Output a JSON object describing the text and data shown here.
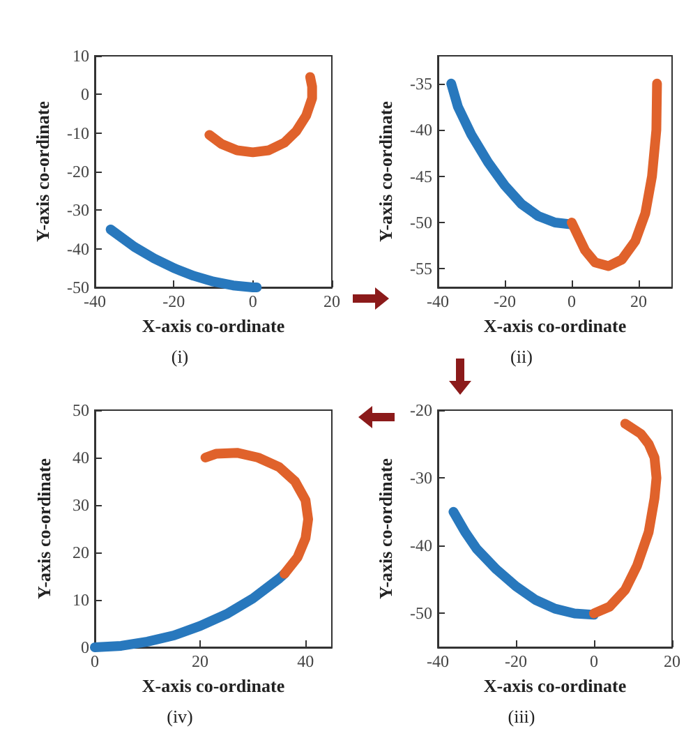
{
  "chart_data": [
    {
      "type": "line",
      "xlabel": "X-axis co-ordinate",
      "ylabel": "Y-axis co-ordinate",
      "annotations": [
        "(i)"
      ],
      "xlim": [
        -40,
        20
      ],
      "ylim": [
        -50,
        10
      ],
      "xticks": [
        -40,
        -20,
        0,
        20
      ],
      "yticks": [
        -50,
        -40,
        -30,
        -20,
        -10,
        0,
        10
      ],
      "marker": "none",
      "series": [
        {
          "color": "#2878bd",
          "x": [
            -36,
            -30,
            -25,
            -20,
            -15,
            -10,
            -5,
            0,
            1
          ],
          "values": [
            -35,
            -39.5,
            -42.5,
            -45,
            -47,
            -48.5,
            -49.5,
            -50,
            -50
          ]
        },
        {
          "color": "#e0622b",
          "x": [
            -11,
            -8,
            -4,
            0,
            4,
            8,
            11,
            13.5,
            15,
            15,
            14.5
          ],
          "values": [
            -10.5,
            -12.8,
            -14.5,
            -15,
            -14.5,
            -12.5,
            -9.5,
            -5.5,
            -1,
            2,
            4.5
          ]
        }
      ]
    },
    {
      "type": "line",
      "xlabel": "X-axis co-ordinate",
      "ylabel": "Y-axis co-ordinate",
      "annotations": [
        "(ii)"
      ],
      "xlim": [
        -40,
        30
      ],
      "ylim": [
        -57,
        -32
      ],
      "xticks": [
        -40,
        -20,
        0,
        20
      ],
      "yticks": [
        -55,
        -50,
        -45,
        -40,
        -35
      ],
      "marker": "none",
      "series": [
        {
          "color": "#2878bd",
          "x": [
            -36,
            -34,
            -30,
            -25,
            -20,
            -15,
            -10,
            -5,
            0
          ],
          "values": [
            -35,
            -37.5,
            -40.5,
            -43.5,
            -46,
            -48,
            -49.3,
            -50,
            -50.2
          ]
        },
        {
          "color": "#e0622b",
          "x": [
            0,
            2,
            4,
            7,
            11,
            15,
            19,
            22,
            24,
            25.3,
            25.5
          ],
          "values": [
            -50,
            -51.5,
            -53,
            -54.3,
            -54.7,
            -54,
            -52,
            -49,
            -45,
            -40,
            -35
          ]
        }
      ]
    },
    {
      "type": "line",
      "xlabel": "X-axis co-ordinate",
      "ylabel": "Y-axis co-ordinate",
      "annotations": [
        "(iv)"
      ],
      "xlim": [
        0,
        45
      ],
      "ylim": [
        0,
        50
      ],
      "xticks": [
        0,
        20,
        40
      ],
      "yticks": [
        0,
        10,
        20,
        30,
        40,
        50
      ],
      "marker": "none",
      "series": [
        {
          "color": "#2878bd",
          "x": [
            0,
            5,
            10,
            15,
            20,
            25,
            30,
            35,
            36
          ],
          "values": [
            0,
            0.3,
            1.2,
            2.5,
            4.5,
            7,
            10.3,
            14.5,
            15.5
          ]
        },
        {
          "color": "#e0622b",
          "x": [
            36,
            38.5,
            40,
            40.5,
            40,
            38,
            35,
            31,
            27,
            23,
            21
          ],
          "values": [
            15.5,
            19,
            23,
            27,
            31,
            35,
            38,
            40,
            41,
            40.8,
            40
          ]
        }
      ]
    },
    {
      "type": "line",
      "xlabel": "X-axis co-ordinate",
      "ylabel": "Y-axis co-ordinate",
      "annotations": [
        "(iii)"
      ],
      "xlim": [
        -40,
        20
      ],
      "ylim": [
        -55,
        -20
      ],
      "xticks": [
        -40,
        -20,
        0,
        20
      ],
      "yticks": [
        -50,
        -40,
        -30,
        -20
      ],
      "marker": "none",
      "series": [
        {
          "color": "#2878bd",
          "x": [
            -36,
            -33,
            -30,
            -25,
            -20,
            -15,
            -10,
            -5,
            0
          ],
          "values": [
            -35,
            -38,
            -40.5,
            -43.5,
            -46,
            -48,
            -49.3,
            -50,
            -50.2
          ]
        },
        {
          "color": "#e0622b",
          "x": [
            0,
            4,
            8,
            11,
            14,
            15.5,
            16,
            15.5,
            14,
            12,
            8
          ],
          "values": [
            -50,
            -49,
            -46.5,
            -43,
            -38,
            -33,
            -30,
            -27,
            -25,
            -23.5,
            -22
          ]
        }
      ]
    }
  ]
}
